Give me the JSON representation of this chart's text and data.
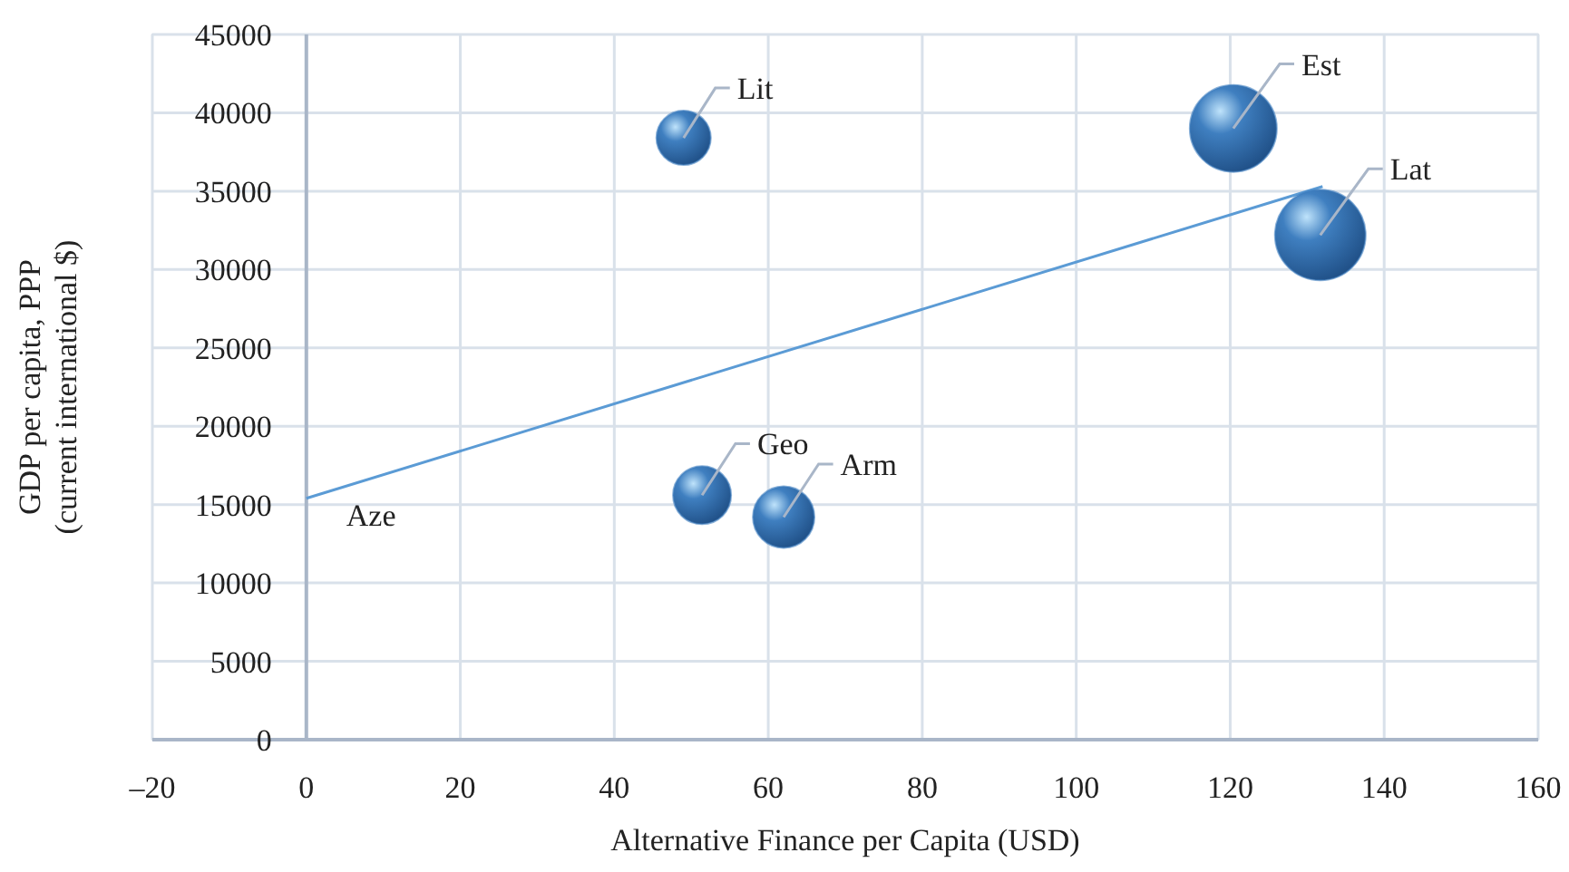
{
  "chart_data": {
    "type": "bubble",
    "xlabel": "Alternative Finance per Capita (USD)",
    "ylabel": "GDP per capita, PPP (current international $)",
    "xlim": [
      -20,
      160
    ],
    "xticks": [
      {
        "value": -20,
        "label": "–20"
      },
      0,
      20,
      40,
      60,
      80,
      100,
      120,
      140,
      160
    ],
    "ylim": [
      0,
      45000
    ],
    "yticks": [
      0,
      5000,
      10000,
      15000,
      20000,
      25000,
      30000,
      35000,
      40000,
      45000
    ],
    "grid": true,
    "series": [
      {
        "color": "#3f7fc0",
        "x": [
          49,
          51.4,
          62,
          120.4,
          131.7
        ],
        "values": [
          38400,
          15600,
          14200,
          39000,
          32200
        ],
        "sizes": [
          0.36,
          0.41,
          0.46,
          0.92,
          1
        ]
      },
      {
        "type": "line",
        "color": "#5b9bd5",
        "x": [
          0,
          132
        ],
        "values": [
          15400,
          35300
        ]
      }
    ],
    "annotations": [
      {
        "text": "Aze",
        "x": 0,
        "y": 15400
      },
      {
        "text": "Lit",
        "x": 49,
        "y": 38400
      },
      {
        "text": "Geo",
        "x": 51.4,
        "y": 15600
      },
      {
        "text": "Arm",
        "x": 62,
        "y": 14200
      },
      {
        "text": "Est",
        "x": 120.4,
        "y": 39000
      },
      {
        "text": "Lat",
        "x": 131.7,
        "y": 32200
      }
    ]
  }
}
